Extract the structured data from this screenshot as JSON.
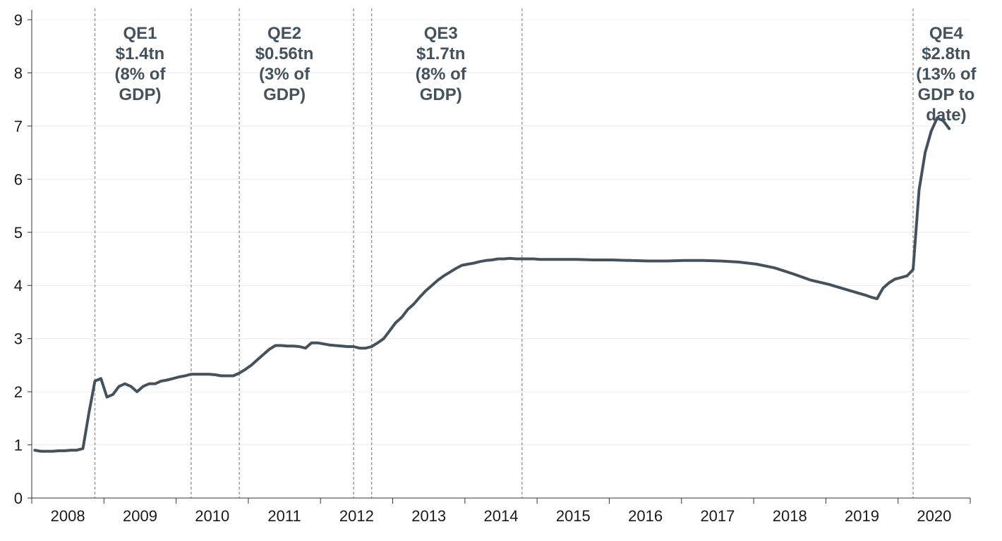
{
  "chart_data": {
    "type": "line",
    "title": "",
    "xlabel": "",
    "ylabel": "",
    "ylim": [
      0,
      9
    ],
    "xlim": [
      "2008-01",
      "2020-12"
    ],
    "grid": true,
    "line_color": "#44525e",
    "y_ticks": [
      "0",
      "1",
      "2",
      "3",
      "4",
      "5",
      "6",
      "7",
      "8",
      "9"
    ],
    "x_ticks": [
      "2008",
      "2009",
      "2010",
      "2011",
      "2012",
      "2013",
      "2014",
      "2015",
      "2016",
      "2017",
      "2018",
      "2019",
      "2020"
    ],
    "event_lines": [
      "2008-11",
      "2010-03",
      "2010-11",
      "2012-06",
      "2012-09",
      "2014-10",
      "2020-03"
    ],
    "annotations": [
      {
        "lines": [
          "QE1",
          "$1.4tn",
          "(8% of",
          "GDP)"
        ],
        "at": "2009-07"
      },
      {
        "lines": [
          "QE2",
          "$0.56tn",
          "(3% of",
          "GDP)"
        ],
        "at": "2011-07"
      },
      {
        "lines": [
          "QE3",
          "$1.7tn",
          "(8% of",
          "GDP)"
        ],
        "at": "2013-09"
      },
      {
        "lines": [
          "QE4",
          "$2.8tn",
          "(13% of",
          "GDP to",
          "date)"
        ],
        "at": "2020-09"
      }
    ],
    "series": [
      {
        "x": [
          "2008-01",
          "2008-02",
          "2008-03",
          "2008-04",
          "2008-05",
          "2008-06",
          "2008-07",
          "2008-08",
          "2008-09",
          "2008-10",
          "2008-11",
          "2008-12",
          "2009-01",
          "2009-02",
          "2009-03",
          "2009-04",
          "2009-05",
          "2009-06",
          "2009-07",
          "2009-08",
          "2009-09",
          "2009-10",
          "2009-11",
          "2009-12",
          "2010-01",
          "2010-02",
          "2010-03",
          "2010-04",
          "2010-05",
          "2010-06",
          "2010-07",
          "2010-08",
          "2010-09",
          "2010-10",
          "2010-11",
          "2010-12",
          "2011-01",
          "2011-02",
          "2011-03",
          "2011-04",
          "2011-05",
          "2011-06",
          "2011-07",
          "2011-08",
          "2011-09",
          "2011-10",
          "2011-11",
          "2011-12",
          "2012-01",
          "2012-02",
          "2012-03",
          "2012-04",
          "2012-05",
          "2012-06",
          "2012-07",
          "2012-08",
          "2012-09",
          "2012-10",
          "2012-11",
          "2012-12",
          "2013-01",
          "2013-02",
          "2013-03",
          "2013-04",
          "2013-05",
          "2013-06",
          "2013-07",
          "2013-08",
          "2013-09",
          "2013-10",
          "2013-11",
          "2013-12",
          "2014-01",
          "2014-02",
          "2014-03",
          "2014-04",
          "2014-05",
          "2014-06",
          "2014-07",
          "2014-08",
          "2014-09",
          "2014-10",
          "2014-11",
          "2014-12",
          "2015-01",
          "2015-04",
          "2015-07",
          "2015-10",
          "2016-01",
          "2016-04",
          "2016-07",
          "2016-10",
          "2017-01",
          "2017-04",
          "2017-07",
          "2017-10",
          "2018-01",
          "2018-04",
          "2018-07",
          "2018-10",
          "2019-01",
          "2019-04",
          "2019-07",
          "2019-08",
          "2019-09",
          "2019-10",
          "2019-11",
          "2019-12",
          "2020-01",
          "2020-02",
          "2020-03",
          "2020-04",
          "2020-05",
          "2020-06",
          "2020-07",
          "2020-08",
          "2020-09"
        ],
        "values": [
          0.9,
          0.88,
          0.88,
          0.88,
          0.89,
          0.89,
          0.9,
          0.9,
          0.93,
          1.6,
          2.2,
          2.25,
          1.9,
          1.95,
          2.1,
          2.15,
          2.1,
          2.0,
          2.1,
          2.15,
          2.15,
          2.2,
          2.22,
          2.25,
          2.28,
          2.3,
          2.33,
          2.33,
          2.33,
          2.33,
          2.32,
          2.3,
          2.3,
          2.3,
          2.35,
          2.42,
          2.5,
          2.6,
          2.7,
          2.8,
          2.87,
          2.87,
          2.86,
          2.86,
          2.85,
          2.82,
          2.92,
          2.92,
          2.9,
          2.88,
          2.87,
          2.86,
          2.85,
          2.85,
          2.82,
          2.82,
          2.85,
          2.92,
          3.0,
          3.15,
          3.3,
          3.4,
          3.55,
          3.65,
          3.78,
          3.9,
          4.0,
          4.1,
          4.18,
          4.25,
          4.32,
          4.38,
          4.4,
          4.42,
          4.45,
          4.47,
          4.48,
          4.5,
          4.5,
          4.51,
          4.5,
          4.5,
          4.5,
          4.5,
          4.49,
          4.49,
          4.49,
          4.48,
          4.48,
          4.47,
          4.46,
          4.46,
          4.47,
          4.47,
          4.46,
          4.44,
          4.4,
          4.33,
          4.22,
          4.1,
          4.02,
          3.92,
          3.82,
          3.78,
          3.75,
          3.95,
          4.05,
          4.12,
          4.15,
          4.18,
          4.3,
          5.8,
          6.5,
          6.9,
          7.15,
          7.1,
          6.95
        ]
      }
    ]
  }
}
